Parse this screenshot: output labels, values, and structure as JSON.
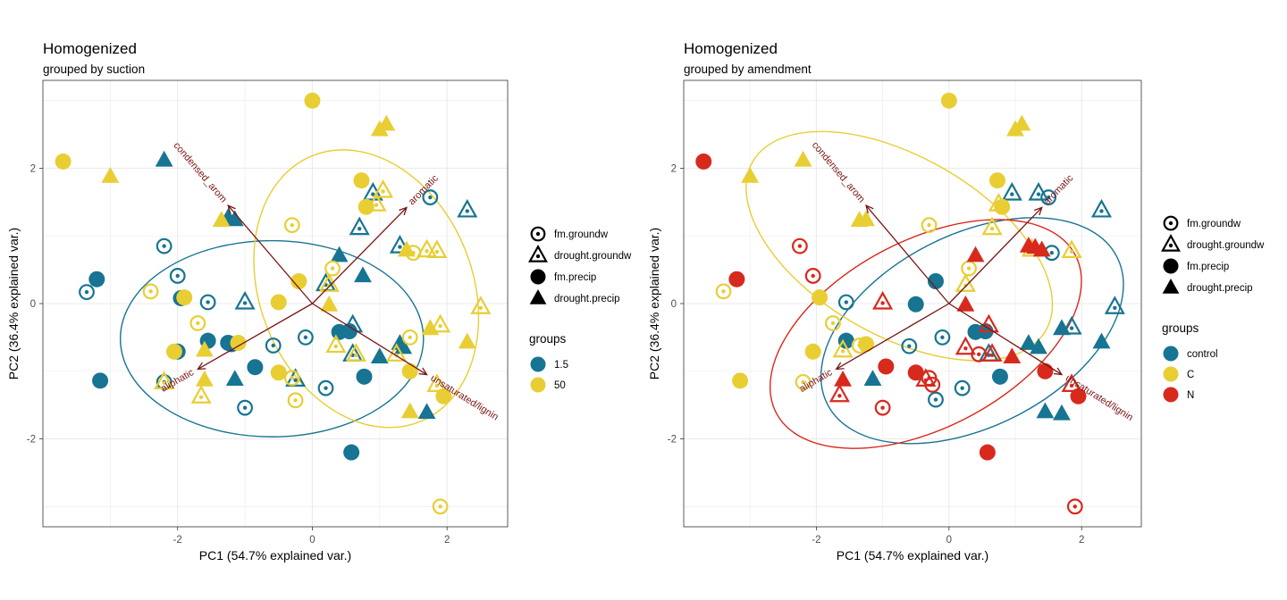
{
  "colors": {
    "teal": "#177492",
    "yellow": "#E8CE33",
    "red": "#D8291D",
    "arrow": "#7A1414",
    "grid": "#EBEBEB",
    "panel_border": "#333333"
  },
  "chart_data": [
    {
      "type": "scatter",
      "title": "Homogenized",
      "subtitle": "grouped by suction",
      "xlabel": "PC1 (54.7% explained var.)",
      "ylabel": "PC2 (36.4% explained var.)",
      "xlim": [
        -4.0,
        2.9
      ],
      "ylim": [
        -3.3,
        3.3
      ],
      "xticks": [
        -2,
        0,
        2
      ],
      "yticks": [
        -2,
        0,
        2
      ],
      "xtick_labels": [
        "-2",
        "0",
        "2"
      ],
      "ytick_labels": [
        "-2",
        "0",
        "2"
      ],
      "grid": true,
      "legend_position": "right",
      "shape_legend": [
        "fm.groundw",
        "drought.groundw",
        "fm.precip",
        "drought.precip"
      ],
      "color_legend": {
        "title": "groups",
        "entries": [
          {
            "label": "1.5",
            "color": "#177492"
          },
          {
            "label": "50",
            "color": "#E8CE33"
          }
        ]
      },
      "loadings": [
        {
          "label": "condensed_arom",
          "x": -1.25,
          "y": 1.45
        },
        {
          "label": "aromatic",
          "x": 1.4,
          "y": 1.42
        },
        {
          "label": "aliphatic",
          "x": -1.7,
          "y": -0.97
        },
        {
          "label": "unsaturated/lignin",
          "x": 1.7,
          "y": -1.05
        }
      ],
      "ellipses": [
        {
          "group": "1.5",
          "color": "#177492",
          "cx": -0.6,
          "cy": -0.52,
          "rx": 2.25,
          "ry": 1.45,
          "angle": 0
        },
        {
          "group": "50",
          "color": "#E8CE33",
          "cx": 0.8,
          "cy": 0.22,
          "rx": 1.58,
          "ry": 2.12,
          "angle": -22
        }
      ],
      "series": [
        {
          "group": "1.5",
          "shape": "fm.groundw",
          "points": [
            [
              -3.35,
              0.17
            ],
            [
              -2.2,
              0.85
            ],
            [
              -2.0,
              0.41
            ],
            [
              -1.55,
              0.02
            ],
            [
              -2.2,
              -1.16
            ],
            [
              -1.0,
              -1.54
            ],
            [
              -0.58,
              -0.62
            ],
            [
              -0.1,
              -0.5
            ],
            [
              0.2,
              -1.25
            ],
            [
              1.75,
              1.57
            ]
          ]
        },
        {
          "group": "1.5",
          "shape": "drought.groundw",
          "points": [
            [
              -1.0,
              0.02
            ],
            [
              -0.25,
              -1.12
            ],
            [
              0.2,
              0.29
            ],
            [
              0.6,
              -0.32
            ],
            [
              0.6,
              -0.75
            ],
            [
              0.7,
              1.12
            ],
            [
              0.9,
              1.63
            ],
            [
              1.3,
              0.85
            ],
            [
              2.3,
              1.38
            ]
          ]
        },
        {
          "group": "1.5",
          "shape": "fm.precip",
          "points": [
            [
              -3.2,
              0.36
            ],
            [
              -3.15,
              -1.14
            ],
            [
              -1.95,
              0.08
            ],
            [
              -2.0,
              -0.71
            ],
            [
              -1.55,
              -0.55
            ],
            [
              -1.2,
              -0.6
            ],
            [
              -1.25,
              -0.58
            ],
            [
              -0.85,
              -0.94
            ],
            [
              0.4,
              -0.42
            ],
            [
              0.58,
              -2.2
            ],
            [
              0.77,
              -1.08
            ],
            [
              0.55,
              -0.41
            ]
          ]
        },
        {
          "group": "1.5",
          "shape": "drought.precip",
          "points": [
            [
              -2.2,
              2.12
            ],
            [
              -1.25,
              1.27
            ],
            [
              -1.15,
              1.24
            ],
            [
              -1.15,
              -1.12
            ],
            [
              0.4,
              0.71
            ],
            [
              0.75,
              0.41
            ],
            [
              1.0,
              -0.79
            ],
            [
              1.3,
              -0.59
            ],
            [
              1.7,
              -1.61
            ],
            [
              1.35,
              -0.65
            ]
          ]
        },
        {
          "group": "50",
          "shape": "fm.groundw",
          "points": [
            [
              -2.4,
              0.18
            ],
            [
              -1.7,
              -0.29
            ],
            [
              -0.3,
              1.16
            ],
            [
              -0.3,
              -1.1
            ],
            [
              -0.25,
              -1.43
            ],
            [
              0.3,
              0.52
            ],
            [
              1.5,
              0.75
            ],
            [
              1.45,
              -0.5
            ],
            [
              1.9,
              -3.0
            ]
          ]
        },
        {
          "group": "50",
          "shape": "drought.groundw",
          "points": [
            [
              -2.2,
              -1.16
            ],
            [
              -1.65,
              -1.37
            ],
            [
              0.25,
              0.28
            ],
            [
              0.35,
              -0.62
            ],
            [
              0.65,
              -0.75
            ],
            [
              0.95,
              1.47
            ],
            [
              1.05,
              1.67
            ],
            [
              1.25,
              -0.75
            ],
            [
              1.7,
              0.79
            ],
            [
              1.85,
              0.78
            ],
            [
              1.9,
              -0.32
            ],
            [
              1.85,
              -1.2
            ],
            [
              2.5,
              -0.05
            ]
          ]
        },
        {
          "group": "50",
          "shape": "fm.precip",
          "points": [
            [
              -3.7,
              2.1
            ],
            [
              -2.05,
              -0.71
            ],
            [
              -0.5,
              -1.02
            ],
            [
              -1.9,
              0.09
            ],
            [
              -1.1,
              -0.58
            ],
            [
              -0.5,
              0.02
            ],
            [
              -0.2,
              0.33
            ],
            [
              0,
              3.0
            ],
            [
              0.73,
              1.82
            ],
            [
              0.8,
              1.43
            ],
            [
              1.45,
              -1.0
            ],
            [
              1.95,
              -1.37
            ]
          ]
        },
        {
          "group": "50",
          "shape": "drought.precip",
          "points": [
            [
              -3.0,
              1.88
            ],
            [
              -1.6,
              -0.69
            ],
            [
              -1.6,
              -1.13
            ],
            [
              -1.35,
              1.23
            ],
            [
              0.25,
              -0.02
            ],
            [
              1.0,
              2.57
            ],
            [
              1.1,
              2.65
            ],
            [
              1.4,
              0.79
            ],
            [
              1.45,
              -1.6
            ],
            [
              1.75,
              -0.37
            ],
            [
              2.3,
              -0.57
            ]
          ]
        }
      ]
    },
    {
      "type": "scatter",
      "title": "Homogenized",
      "subtitle": "grouped by amendment",
      "xlabel": "PC1 (54.7% explained var.)",
      "ylabel": "PC2 (36.4% explained var.)",
      "xlim": [
        -4.0,
        2.9
      ],
      "ylim": [
        -3.3,
        3.3
      ],
      "xticks": [
        -2,
        0,
        2
      ],
      "yticks": [
        -2,
        0,
        2
      ],
      "xtick_labels": [
        "-2",
        "0",
        "2"
      ],
      "ytick_labels": [
        "-2",
        "0",
        "2"
      ],
      "grid": true,
      "legend_position": "right",
      "shape_legend": [
        "fm.groundw",
        "drought.groundw",
        "fm.precip",
        "drought.precip"
      ],
      "color_legend": {
        "title": "groups",
        "entries": [
          {
            "label": "control",
            "color": "#177492"
          },
          {
            "label": "C",
            "color": "#E8CE33"
          },
          {
            "label": "N",
            "color": "#D8291D"
          }
        ]
      },
      "loadings": [
        {
          "label": "condensed_arom",
          "x": -1.25,
          "y": 1.45
        },
        {
          "label": "aromatic",
          "x": 1.4,
          "y": 1.42
        },
        {
          "label": "aliphatic",
          "x": -1.7,
          "y": -0.97
        },
        {
          "label": "unsaturated/lignin",
          "x": 1.7,
          "y": -1.05
        }
      ],
      "ellipses": [
        {
          "group": "control",
          "color": "#177492",
          "cx": 0.35,
          "cy": -0.4,
          "rx": 2.45,
          "ry": 1.42,
          "angle": -27
        },
        {
          "group": "C",
          "color": "#E8CE33",
          "cx": -0.75,
          "cy": 0.85,
          "rx": 2.55,
          "ry": 1.32,
          "angle": 30
        },
        {
          "group": "N",
          "color": "#D8291D",
          "cx": -0.35,
          "cy": -0.45,
          "rx": 2.55,
          "ry": 1.38,
          "angle": -28
        }
      ],
      "series": [
        {
          "group": "control",
          "shape": "fm.groundw",
          "points": [
            [
              -1.55,
              0.02
            ],
            [
              -0.6,
              -0.63
            ],
            [
              -0.1,
              -0.5
            ],
            [
              0.2,
              -1.25
            ],
            [
              -0.2,
              -1.42
            ],
            [
              1.55,
              0.75
            ],
            [
              1.5,
              1.57
            ]
          ]
        },
        {
          "group": "control",
          "shape": "drought.groundw",
          "points": [
            [
              0.95,
              1.63
            ],
            [
              1.35,
              1.63
            ],
            [
              2.3,
              1.38
            ],
            [
              2.5,
              -0.05
            ],
            [
              1.85,
              -0.35
            ],
            [
              0.6,
              -0.75
            ]
          ]
        },
        {
          "group": "control",
          "shape": "fm.precip",
          "points": [
            [
              -1.55,
              -0.55
            ],
            [
              -0.5,
              -0.01
            ],
            [
              -0.2,
              0.33
            ],
            [
              0.4,
              -0.42
            ],
            [
              0.55,
              -0.41
            ],
            [
              0.77,
              -1.08
            ]
          ]
        },
        {
          "group": "control",
          "shape": "drought.precip",
          "points": [
            [
              -1.15,
              -1.12
            ],
            [
              1.2,
              -0.59
            ],
            [
              1.35,
              -0.65
            ],
            [
              1.45,
              -1.6
            ],
            [
              1.7,
              -1.63
            ],
            [
              1.7,
              -0.37
            ],
            [
              2.3,
              -0.57
            ]
          ]
        },
        {
          "group": "C",
          "shape": "fm.groundw",
          "points": [
            [
              -3.4,
              0.18
            ],
            [
              -1.75,
              -0.29
            ],
            [
              -1.35,
              -0.62
            ],
            [
              -0.3,
              1.16
            ],
            [
              0.3,
              0.52
            ],
            [
              -2.2,
              -1.16
            ]
          ]
        },
        {
          "group": "C",
          "shape": "drought.groundw",
          "points": [
            [
              0.25,
              0.28
            ],
            [
              0.65,
              1.12
            ],
            [
              0.75,
              1.47
            ],
            [
              1.85,
              0.78
            ],
            [
              1.25,
              0.8
            ],
            [
              -1.6,
              -0.69
            ]
          ]
        },
        {
          "group": "C",
          "shape": "fm.precip",
          "points": [
            [
              -3.15,
              -1.14
            ],
            [
              -2.05,
              -0.71
            ],
            [
              -1.95,
              0.09
            ],
            [
              -1.25,
              -0.6
            ],
            [
              0,
              3.0
            ],
            [
              0.73,
              1.82
            ],
            [
              0.8,
              1.43
            ]
          ]
        },
        {
          "group": "C",
          "shape": "drought.precip",
          "points": [
            [
              -3.0,
              1.88
            ],
            [
              -2.2,
              2.12
            ],
            [
              -1.35,
              1.23
            ],
            [
              -1.25,
              1.24
            ],
            [
              1.0,
              2.57
            ],
            [
              1.1,
              2.65
            ]
          ]
        },
        {
          "group": "N",
          "shape": "fm.groundw",
          "points": [
            [
              -2.25,
              0.85
            ],
            [
              -2.05,
              0.41
            ],
            [
              -1.0,
              -1.54
            ],
            [
              -0.3,
              -1.1
            ],
            [
              -0.25,
              -1.2
            ],
            [
              0.45,
              -0.75
            ],
            [
              1.9,
              -3.0
            ]
          ]
        },
        {
          "group": "N",
          "shape": "drought.groundw",
          "points": [
            [
              -1.0,
              0.02
            ],
            [
              -1.65,
              -1.35
            ],
            [
              -0.35,
              -1.12
            ],
            [
              0.25,
              -0.65
            ],
            [
              0.6,
              -0.32
            ],
            [
              0.65,
              -0.75
            ],
            [
              1.85,
              -1.2
            ]
          ]
        },
        {
          "group": "N",
          "shape": "fm.precip",
          "points": [
            [
              -3.7,
              2.1
            ],
            [
              -3.2,
              0.36
            ],
            [
              -0.95,
              -0.93
            ],
            [
              -0.5,
              -1.02
            ],
            [
              0.58,
              -2.2
            ],
            [
              1.45,
              -1.0
            ],
            [
              1.95,
              -1.37
            ]
          ]
        },
        {
          "group": "N",
          "shape": "drought.precip",
          "points": [
            [
              -1.6,
              -1.13
            ],
            [
              0.25,
              -0.02
            ],
            [
              0.4,
              0.71
            ],
            [
              0.95,
              -0.79
            ],
            [
              1.2,
              0.85
            ],
            [
              1.3,
              0.83
            ],
            [
              1.4,
              0.79
            ]
          ]
        }
      ]
    }
  ]
}
